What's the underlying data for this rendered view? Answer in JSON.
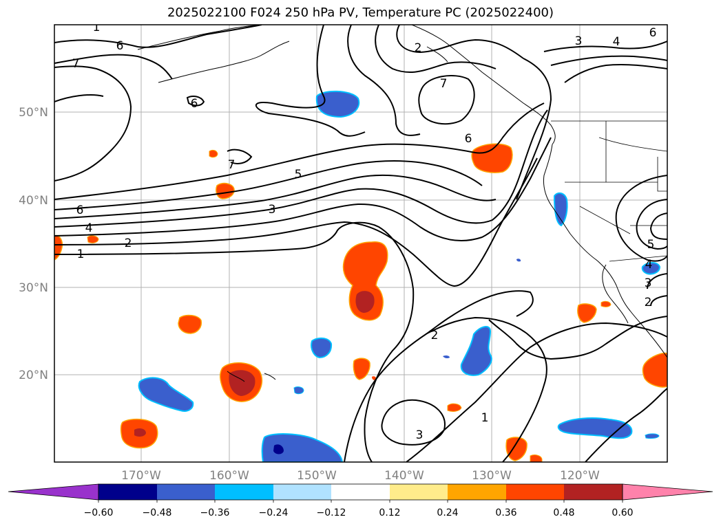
{
  "title": "2025022100 F024 250 hPa PV, Temperature PC (2025022400)",
  "lat_labels": [
    "50°N",
    "40°N",
    "30°N",
    "20°N"
  ],
  "lon_labels": [
    "170°W",
    "160°W",
    "150°W",
    "140°W",
    "130°W",
    "120°W"
  ],
  "contour_labels": [
    "6",
    "7",
    "2",
    "3",
    "4",
    "6",
    "7",
    "6",
    "6",
    "7",
    "5",
    "3",
    "6",
    "4",
    "2",
    "1",
    "5",
    "4",
    "3",
    "2",
    "2",
    "3",
    "1"
  ],
  "colorbar": {
    "ticks": [
      "−0.60",
      "−0.48",
      "−0.36",
      "−0.24",
      "−0.12",
      "0.12",
      "0.24",
      "0.36",
      "0.48",
      "0.60"
    ],
    "colors": [
      "#9932cc",
      "#00008b",
      "#3a5fcd",
      "#00bfff",
      "#b0e2ff",
      "#ffffff",
      "#ffec8b",
      "#ffa500",
      "#ff4500",
      "#b22222",
      "#ff82ab"
    ]
  }
}
